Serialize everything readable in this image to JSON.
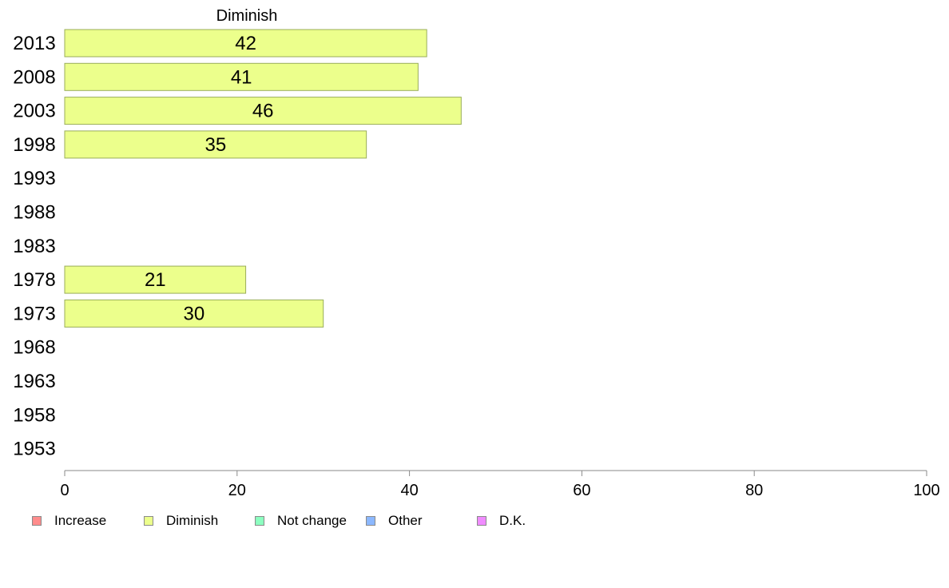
{
  "chart_data": {
    "type": "bar",
    "orientation": "horizontal",
    "title": "Diminish",
    "categories": [
      "2013",
      "2008",
      "2003",
      "1998",
      "1993",
      "1988",
      "1983",
      "1978",
      "1973",
      "1968",
      "1963",
      "1958",
      "1953"
    ],
    "series": [
      {
        "name": "Diminish",
        "values": [
          42,
          41,
          46,
          35,
          null,
          null,
          null,
          21,
          30,
          null,
          null,
          null,
          null
        ],
        "color": "#ecff8c"
      }
    ],
    "xlim": [
      0,
      100
    ],
    "xticks": [
      0,
      20,
      40,
      60,
      80,
      100
    ],
    "grid": false,
    "legend_position": "bottom"
  },
  "legend": [
    {
      "label": "Increase",
      "color": "#ff8c8c"
    },
    {
      "label": "Diminish",
      "color": "#ecff8c"
    },
    {
      "label": "Not change",
      "color": "#8cffc0"
    },
    {
      "label": "Other",
      "color": "#8cb8ff"
    },
    {
      "label": "D.K.",
      "color": "#f08cff"
    }
  ],
  "colors": {
    "bar_border": "#9aae5a",
    "axis": "#8a8a8a",
    "text": "#000000"
  }
}
